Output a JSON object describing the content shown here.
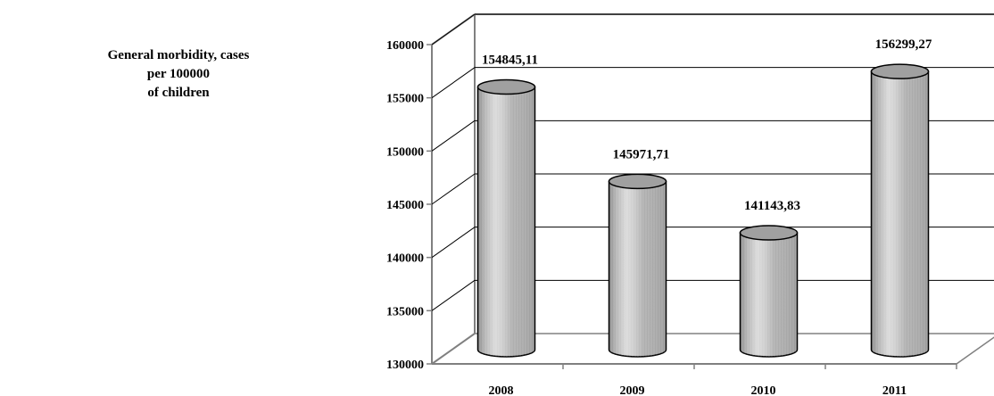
{
  "title_lines": [
    "General morbidity, cases",
    "per 100000",
    "of children"
  ],
  "chart_data": {
    "type": "bar",
    "title": "General morbidity, cases per 100000 of children",
    "categories": [
      "2008",
      "2009",
      "2010",
      "2011"
    ],
    "values": [
      154845.11,
      145971.71,
      141143.83,
      156299.27
    ],
    "value_labels": [
      "154845,11",
      "145971,71",
      "141143,83",
      "156299,27"
    ],
    "ylim": [
      130000,
      160000
    ],
    "yticks": [
      "130000",
      "135000",
      "140000",
      "145000",
      "150000",
      "155000",
      "160000"
    ],
    "ytick_values": [
      130000,
      135000,
      140000,
      145000,
      150000,
      155000,
      160000
    ],
    "grid": true,
    "style": "3d-cylinder",
    "colors": {
      "bar_fill": "#b8b8b8",
      "bar_top": "#a0a0a0",
      "axis": "#808080",
      "gridline": "#000000"
    }
  }
}
